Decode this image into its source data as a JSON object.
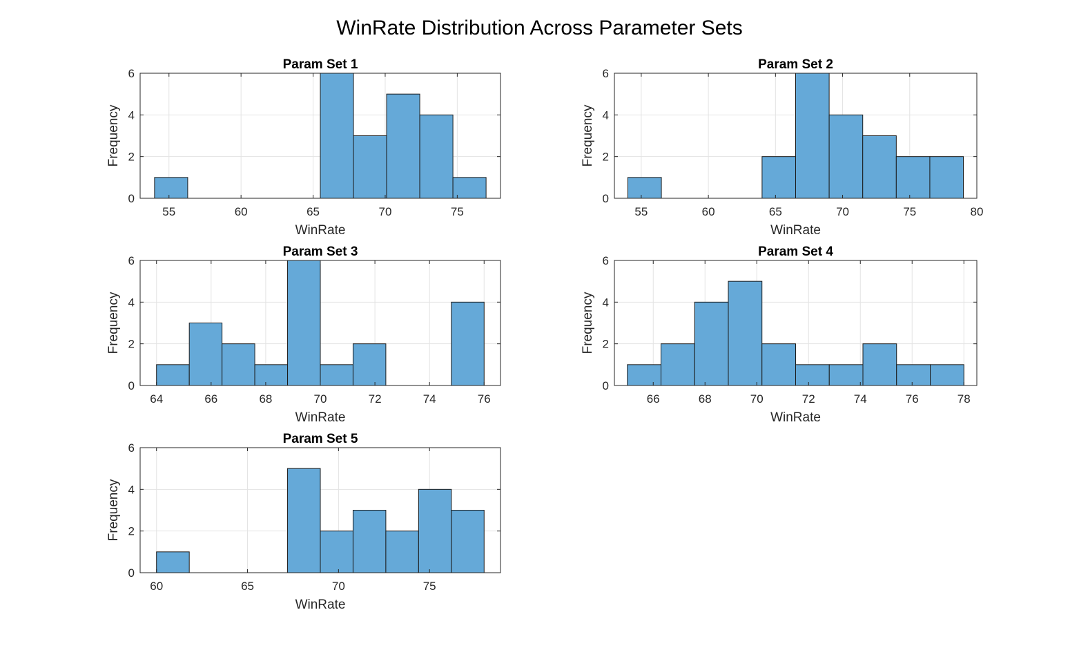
{
  "figure": {
    "title": "WinRate Distribution Across Parameter Sets",
    "bar_color": "#65a9d8",
    "bar_edge_color": "#1a1a1a",
    "grid_color": "#e3e3e3",
    "axis_color": "#262626"
  },
  "chart_data": [
    {
      "type": "bar",
      "title": "Param Set 1",
      "xlabel": "WinRate",
      "ylabel": "Frequency",
      "xlim": [
        53,
        78
      ],
      "ylim": [
        0,
        6
      ],
      "xticks": [
        55,
        60,
        65,
        70,
        75
      ],
      "yticks": [
        0,
        2,
        4,
        6
      ],
      "grid": true,
      "bin_edges": [
        54,
        56.3,
        58.6,
        60.9,
        63.2,
        65.5,
        67.8,
        70.1,
        72.4,
        74.7,
        77
      ],
      "counts": [
        1,
        0,
        0,
        0,
        0,
        6,
        3,
        5,
        4,
        1
      ]
    },
    {
      "type": "bar",
      "title": "Param Set 2",
      "xlabel": "WinRate",
      "ylabel": "Frequency",
      "xlim": [
        53,
        80
      ],
      "ylim": [
        0,
        6
      ],
      "xticks": [
        55,
        60,
        65,
        70,
        75,
        80
      ],
      "yticks": [
        0,
        2,
        4,
        6
      ],
      "grid": true,
      "bin_edges": [
        54,
        56.5,
        59,
        61.5,
        64,
        66.5,
        69,
        71.5,
        74,
        76.5,
        79
      ],
      "counts": [
        1,
        0,
        0,
        0,
        2,
        6,
        4,
        3,
        2,
        2
      ]
    },
    {
      "type": "bar",
      "title": "Param Set 3",
      "xlabel": "WinRate",
      "ylabel": "Frequency",
      "xlim": [
        63.4,
        76.6
      ],
      "ylim": [
        0,
        6
      ],
      "xticks": [
        64,
        66,
        68,
        70,
        72,
        74,
        76
      ],
      "yticks": [
        0,
        2,
        4,
        6
      ],
      "grid": true,
      "bin_edges": [
        64,
        65.2,
        66.4,
        67.6,
        68.8,
        70,
        71.2,
        72.4,
        73.6,
        74.8,
        76
      ],
      "counts": [
        1,
        3,
        2,
        1,
        6,
        1,
        2,
        0,
        0,
        4
      ]
    },
    {
      "type": "bar",
      "title": "Param Set 4",
      "xlabel": "WinRate",
      "ylabel": "Frequency",
      "xlim": [
        64.5,
        78.5
      ],
      "ylim": [
        0,
        6
      ],
      "xticks": [
        66,
        68,
        70,
        72,
        74,
        76,
        78
      ],
      "yticks": [
        0,
        2,
        4,
        6
      ],
      "grid": true,
      "bin_edges": [
        65,
        66.3,
        67.6,
        68.9,
        70.2,
        71.5,
        72.8,
        74.1,
        75.4,
        76.7,
        78
      ],
      "counts": [
        1,
        2,
        4,
        5,
        2,
        1,
        1,
        2,
        1,
        1
      ]
    },
    {
      "type": "bar",
      "title": "Param Set 5",
      "xlabel": "WinRate",
      "ylabel": "Frequency",
      "xlim": [
        59.1,
        78.9
      ],
      "ylim": [
        0,
        6
      ],
      "xticks": [
        60,
        65,
        70,
        75
      ],
      "yticks": [
        0,
        2,
        4,
        6
      ],
      "grid": true,
      "bin_edges": [
        60,
        61.8,
        63.6,
        65.4,
        67.2,
        69,
        70.8,
        72.6,
        74.4,
        76.2,
        78
      ],
      "counts": [
        1,
        0,
        0,
        0,
        5,
        2,
        3,
        2,
        4,
        3
      ]
    }
  ]
}
